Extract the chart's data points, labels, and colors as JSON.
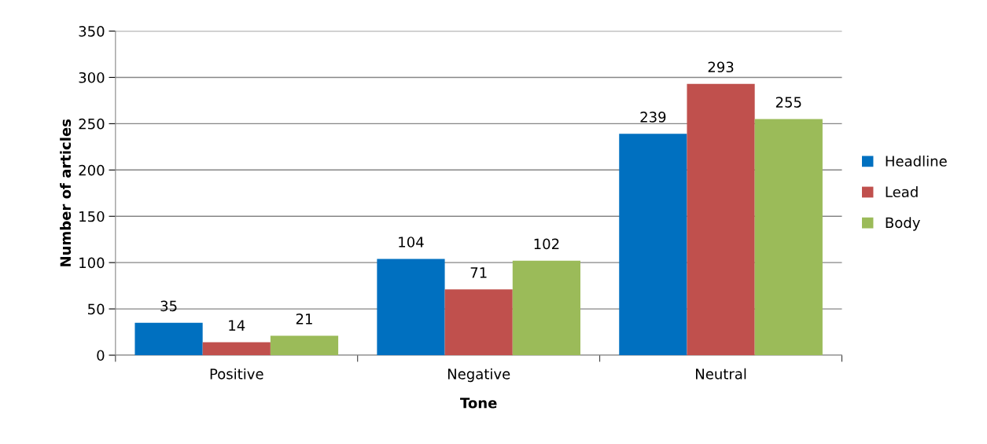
{
  "chart_data": {
    "type": "bar",
    "categories": [
      "Positive",
      "Negative",
      "Neutral"
    ],
    "series": [
      {
        "name": "Headline",
        "color": "#0070c0",
        "values": [
          35,
          104,
          239
        ]
      },
      {
        "name": "Lead",
        "color": "#c0504d",
        "values": [
          14,
          71,
          293
        ]
      },
      {
        "name": "Body",
        "color": "#9bbb59",
        "values": [
          21,
          102,
          255
        ]
      }
    ],
    "xlabel": "Tone",
    "ylabel": "Number of articles",
    "ylim": [
      0,
      350
    ],
    "yticks": [
      0,
      50,
      100,
      150,
      200,
      250,
      300,
      350
    ],
    "grid": "y",
    "legend": "right",
    "data_labels": true
  }
}
